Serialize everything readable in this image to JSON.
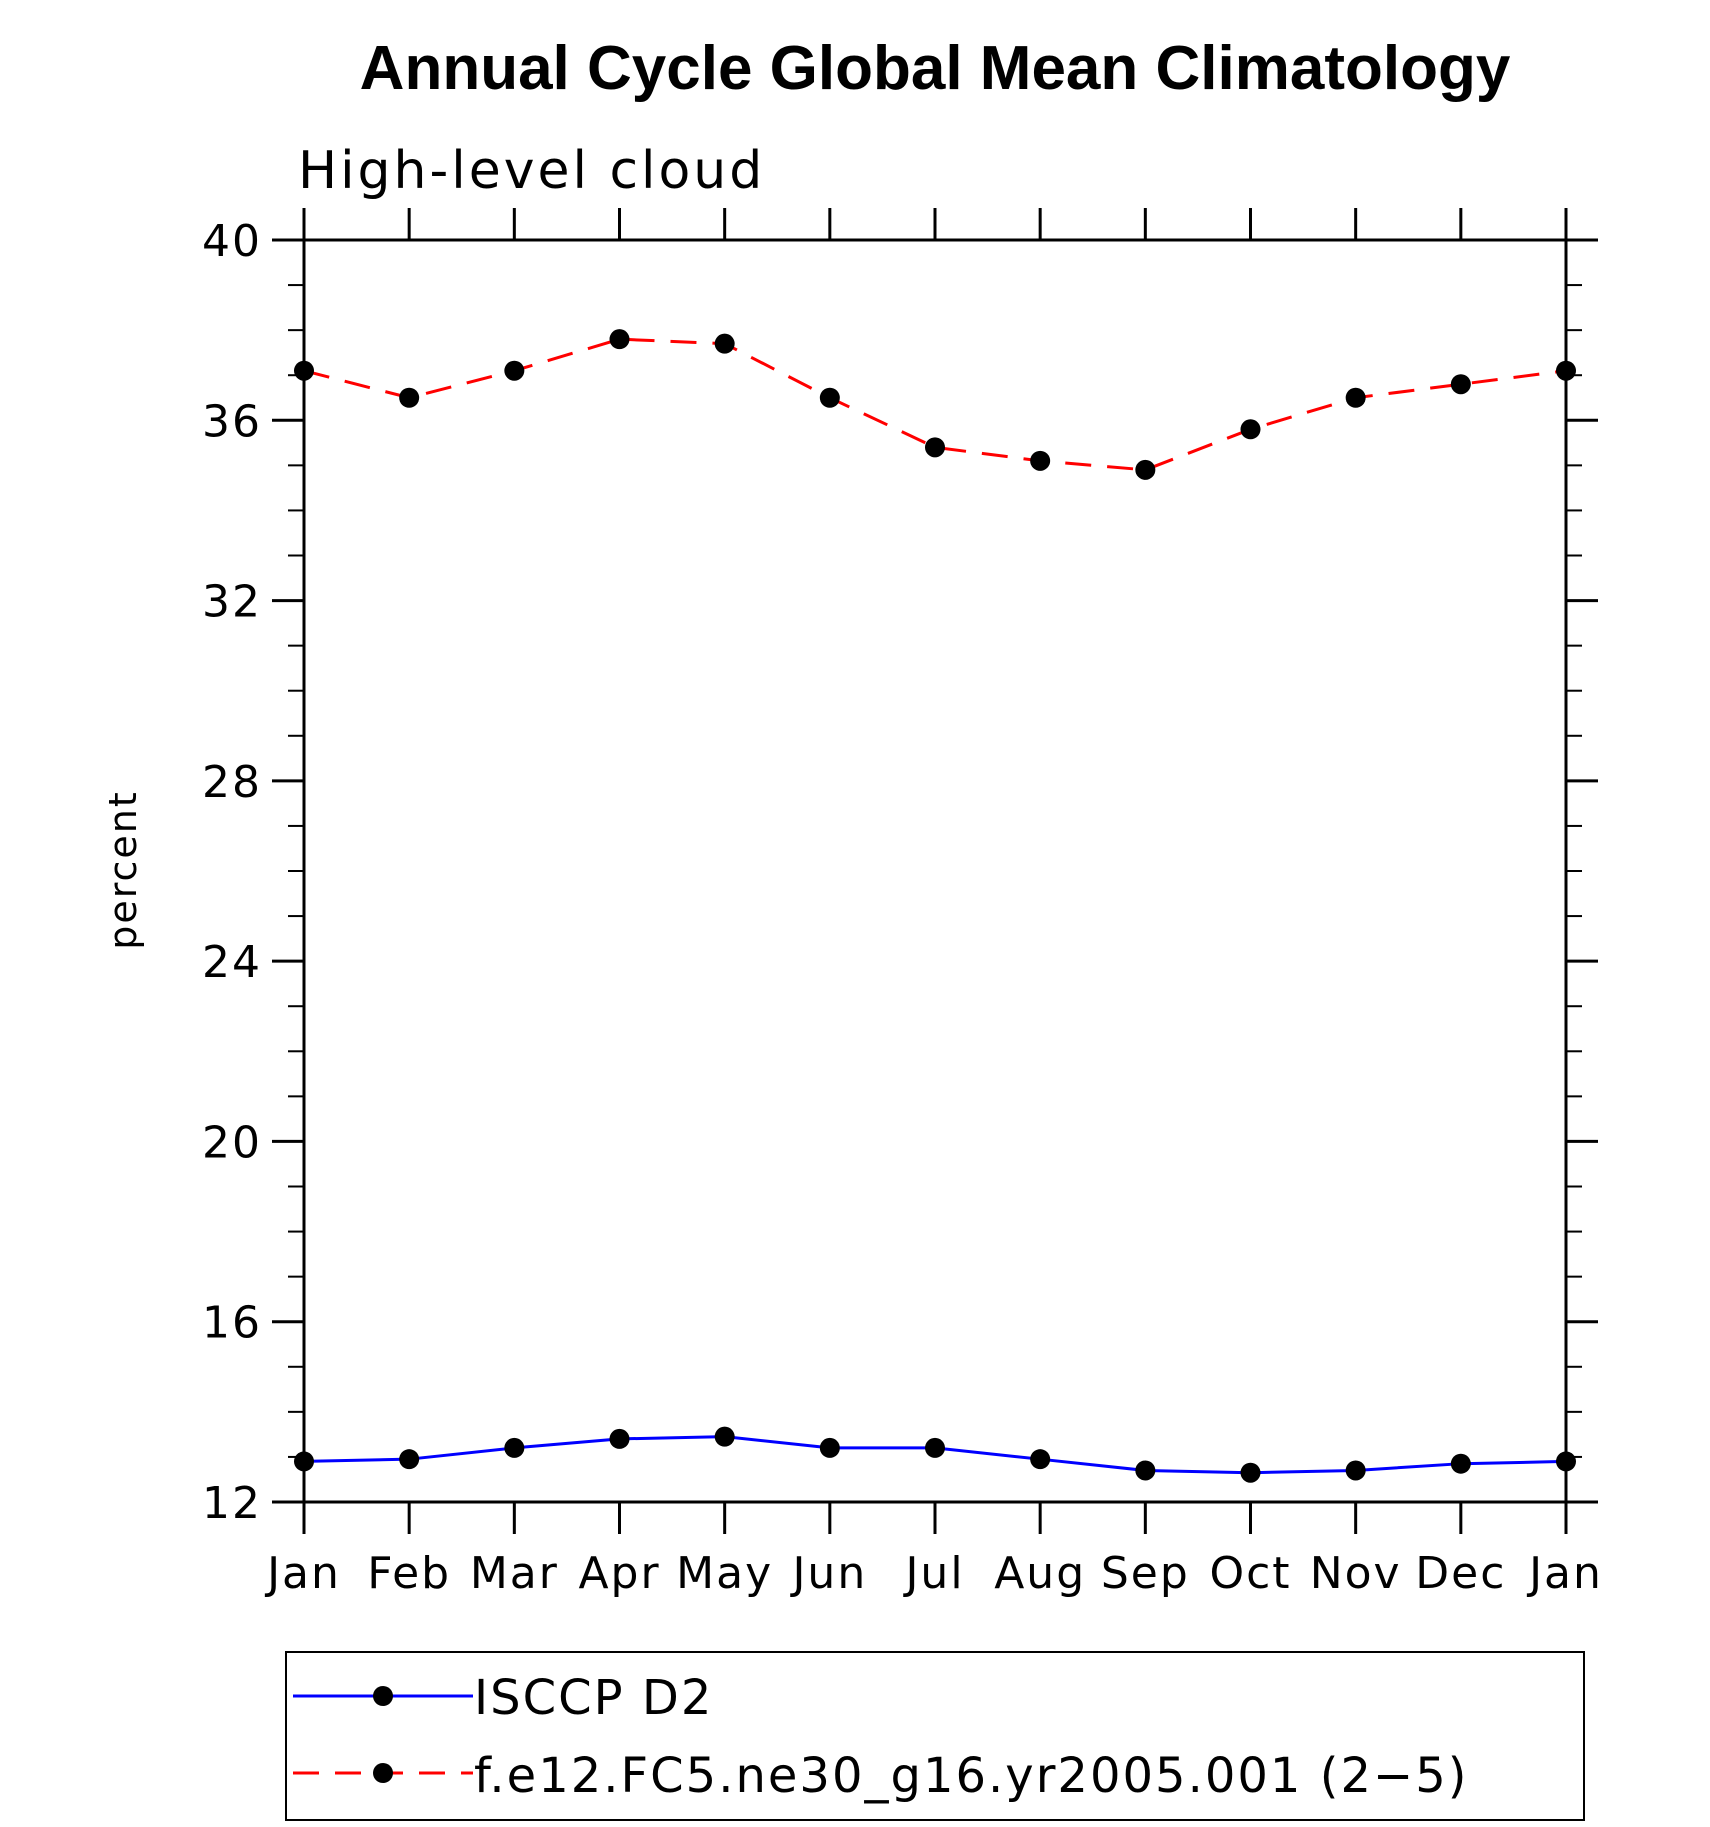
{
  "chart_data": {
    "type": "line",
    "title": "Annual Cycle Global Mean Climatology",
    "subtitle": "High-level cloud",
    "xlabel": "",
    "ylabel": "percent",
    "categories": [
      "Jan",
      "Feb",
      "Mar",
      "Apr",
      "May",
      "Jun",
      "Jul",
      "Aug",
      "Sep",
      "Oct",
      "Nov",
      "Dec",
      "Jan"
    ],
    "ylim": [
      12,
      40
    ],
    "yticks": [
      12,
      16,
      20,
      24,
      28,
      32,
      36,
      40
    ],
    "y_tick_labels": [
      "12",
      "16",
      "20",
      "24",
      "28",
      "32",
      "36",
      "40"
    ],
    "grid": false,
    "legend_position": "bottom",
    "series": [
      {
        "name": "ISCCP D2",
        "color": "#0000ff",
        "line_style": "solid",
        "marker": "filled-circle",
        "values": [
          12.9,
          12.95,
          13.2,
          13.4,
          13.45,
          13.2,
          13.2,
          12.95,
          12.7,
          12.65,
          12.7,
          12.85,
          12.9
        ]
      },
      {
        "name": "f.e12.FC5.ne30_g16.yr2005.001 (2−5)",
        "color": "#ff0000",
        "line_style": "dashed",
        "marker": "filled-circle",
        "values": [
          37.1,
          36.5,
          37.1,
          37.8,
          37.7,
          36.5,
          35.4,
          35.1,
          34.9,
          35.8,
          36.5,
          36.8,
          37.1
        ]
      }
    ]
  }
}
